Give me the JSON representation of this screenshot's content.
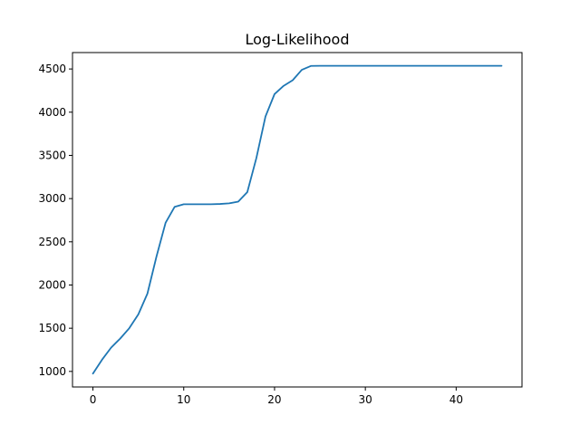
{
  "chart_data": {
    "type": "line",
    "title": "Log-Likelihood",
    "xlabel": "",
    "ylabel": "",
    "xlim": [
      -2.25,
      47.25
    ],
    "ylim": [
      820,
      4690
    ],
    "xticks": [
      0,
      10,
      20,
      30,
      40
    ],
    "yticks": [
      1000,
      1500,
      2000,
      2500,
      3000,
      3500,
      4000,
      4500
    ],
    "grid": false,
    "legend": "none",
    "series": [
      {
        "color": "#1f77b4",
        "x": [
          0,
          1,
          2,
          3,
          4,
          5,
          6,
          7,
          8,
          9,
          10,
          11,
          12,
          13,
          14,
          15,
          16,
          17,
          18,
          19,
          20,
          21,
          22,
          23,
          24,
          25,
          26,
          27,
          28,
          29,
          30,
          31,
          32,
          33,
          34,
          35,
          36,
          37,
          38,
          39,
          40,
          41,
          42,
          43,
          44,
          45
        ],
        "y": [
          975,
          1135,
          1275,
          1380,
          1500,
          1660,
          1900,
          2330,
          2720,
          2905,
          2935,
          2935,
          2935,
          2935,
          2938,
          2945,
          2965,
          3075,
          3470,
          3950,
          4210,
          4305,
          4370,
          4490,
          4535,
          4537,
          4537,
          4537,
          4537,
          4537,
          4537,
          4537,
          4537,
          4537,
          4537,
          4537,
          4537,
          4537,
          4537,
          4537,
          4537,
          4537,
          4537,
          4537,
          4537,
          4537
        ]
      }
    ]
  }
}
